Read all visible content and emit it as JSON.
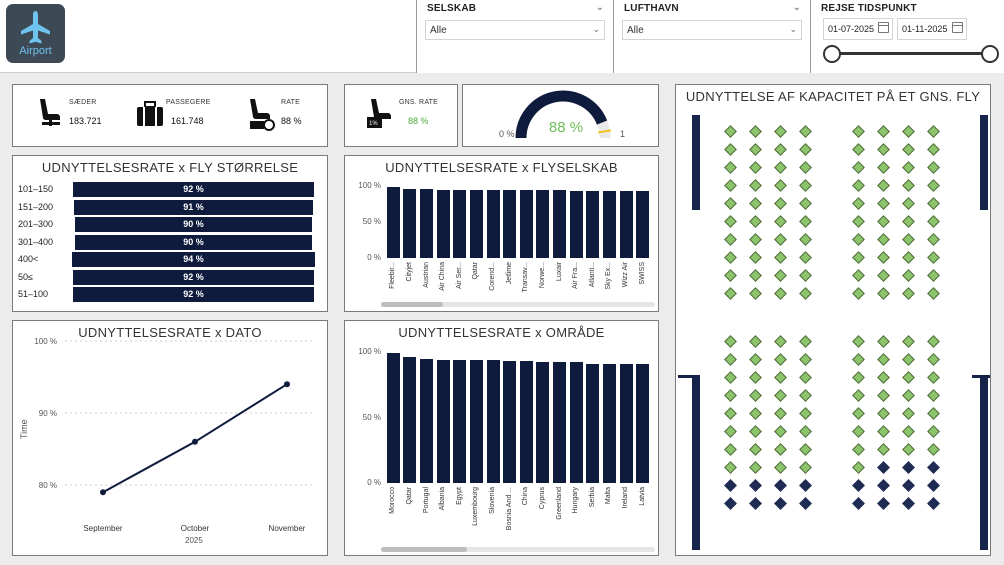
{
  "header": {
    "logo_label": "Airport",
    "slicers": [
      {
        "title": "SELSKAB",
        "value": "Alle"
      },
      {
        "title": "LUFTHAVN",
        "value": "Alle"
      }
    ],
    "date_slicer": {
      "title": "REJSE TIDSPUNKT",
      "start": "01-07-2025",
      "end": "01-11-2025"
    }
  },
  "kpis": {
    "seats": {
      "label": "SÆDER",
      "value": "183.721"
    },
    "passengers": {
      "label": "PASSEGERE",
      "value": "161.748"
    },
    "rate": {
      "label": "RATE",
      "value": "88 %"
    },
    "avg_rate": {
      "label": "GNS. RATE",
      "value": "88 %"
    }
  },
  "gauge": {
    "value_label": "88 %",
    "min_label": "0 %",
    "max_label": "1",
    "value": 0.88,
    "target": 0.95
  },
  "charts": {
    "size": {
      "title": "UDNYTTELSESRATE x FLY STØRRELSE",
      "chart_data": {
        "type": "bar",
        "categories": [
          "101–150",
          "151–200",
          "201–300",
          "301–400",
          "400<",
          "50≤",
          "51–100"
        ],
        "values": [
          92,
          91,
          90,
          90,
          94,
          92,
          92
        ],
        "labels": [
          "92 %",
          "91 %",
          "90 %",
          "90 %",
          "94 %",
          "92 %",
          "92 %"
        ]
      }
    },
    "airline": {
      "title": "UDNYTTELSESRATE x FLYSELSKAB",
      "chart_data": {
        "type": "bar",
        "categories": [
          "Fleebir...",
          "Cityjet",
          "Austrian",
          "Air China",
          "Air Ser...",
          "Qatar",
          "Corend...",
          "Jetlime",
          "Transav...",
          "Norwe...",
          "Luxair",
          "Air Fra...",
          "Atlanti...",
          "Sky Ex...",
          "Wizz Air",
          "SWISS"
        ],
        "values": [
          98,
          96,
          96,
          95,
          95,
          95,
          95,
          94,
          94,
          94,
          94,
          93,
          93,
          93,
          93,
          93
        ],
        "yticks": [
          "100 %",
          "50 %",
          "0 %"
        ],
        "ylim": [
          0,
          100
        ]
      }
    },
    "date": {
      "title": "UDNYTTELSESRATE x DATO",
      "chart_data": {
        "type": "line",
        "categories": [
          "September",
          "October",
          "November"
        ],
        "values": [
          79,
          86,
          94
        ],
        "yticks": [
          "100 %",
          "90 %",
          "80 %"
        ],
        "ylim": [
          75,
          100
        ],
        "xlabel": "2025",
        "ylabel": "Time"
      }
    },
    "region": {
      "title": "UDNYTTELSESRATE x OMRÅDE",
      "chart_data": {
        "type": "bar",
        "categories": [
          "Morocco",
          "Qatar",
          "Portugal",
          "Albania",
          "Egypt",
          "Luxembourg",
          "Slovenia",
          "Bosnia And ...",
          "China",
          "Cyprus",
          "Greenland",
          "Hungary",
          "Serbia",
          "Malta",
          "Ireland",
          "Latvia"
        ],
        "values": [
          99,
          96,
          95,
          94,
          94,
          94,
          94,
          93,
          93,
          92,
          92,
          92,
          91,
          91,
          91,
          91
        ],
        "yticks": [
          "100 %",
          "50 %",
          "0 %"
        ],
        "ylim": [
          0,
          100
        ]
      }
    },
    "seatmap": {
      "title": "UDNYTTELSE AF KAPACITET PÅ ET GNS. FLY",
      "occupied_ratio": 0.88
    }
  },
  "colors": {
    "navy": "#0e1b3d",
    "green": "#8cc46c",
    "gauge_value": "#6fbf5a",
    "logo_bg": "#3d4a55",
    "logo_icon": "#6fc3ef"
  }
}
